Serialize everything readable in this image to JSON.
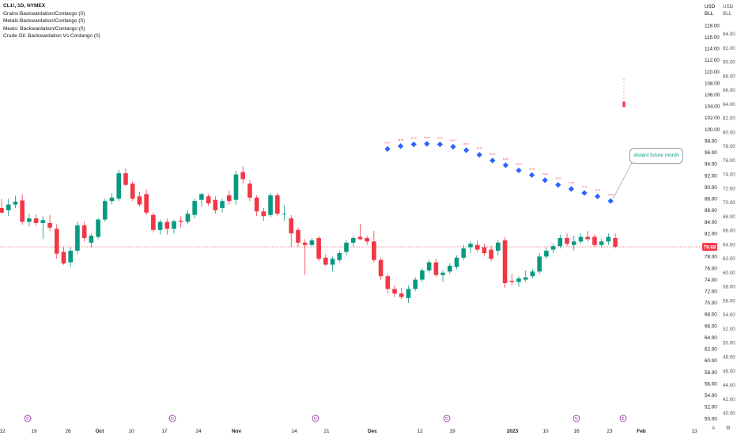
{
  "legend": {
    "symbol": "CL1!, 1D, NYMEX",
    "lines": [
      "Grains:Backwardation/Contango (0)",
      "Metals:Backwardation/Contango (0)",
      "Meats: Backwardation/Contango (0)",
      "Crude Oil: Backwardation Vs Contango (0)"
    ]
  },
  "axis_headers": {
    "right_top": [
      "USD",
      "BLL"
    ],
    "right2_top": [
      "USD",
      "BLL"
    ]
  },
  "annotation": {
    "text": "distant future month"
  },
  "price_tag": {
    "value": "79.68",
    "color": "#f23645"
  },
  "corner_buttons": [
    "A",
    "⚙"
  ],
  "colors": {
    "up": "#089981",
    "down": "#f23645",
    "curve_marker": "#2962ff",
    "curve_label": "#f23645"
  },
  "chart_data": {
    "type": "candlestick",
    "x_ticks": [
      "12",
      "19",
      "26",
      "Oct",
      "10",
      "17",
      "24",
      "Nov",
      "14",
      "21",
      "Dec",
      "12",
      "19",
      "2023",
      "10",
      "16",
      "23",
      "Feb",
      "13"
    ],
    "bold_x_ticks": [
      "Oct",
      "Nov",
      "Dec",
      "2023",
      "Feb"
    ],
    "event_markers": [
      {
        "after_tick": "26",
        "glyph": "↻"
      },
      {
        "after_tick": "10",
        "glyph": "↻"
      },
      {
        "after_tick": "Nov",
        "glyph": "↻"
      },
      {
        "after_tick": "12",
        "glyph": "↻"
      },
      {
        "after_tick": "16",
        "glyph": "↻"
      },
      {
        "after_tick": "23",
        "glyph": "E"
      }
    ],
    "y_axis_left": {
      "label": "USD",
      "range": [
        50,
        118
      ],
      "ticks": [
        "118.00",
        "116.00",
        "114.00",
        "112.00",
        "110.00",
        "108.00",
        "106.00",
        "104.00",
        "102.00",
        "100.00",
        "98.00",
        "96.00",
        "94.00",
        "92.00",
        "90.00",
        "88.00",
        "86.00",
        "84.00",
        "82.00",
        "80.00",
        "78.00",
        "76.00",
        "74.00",
        "72.00",
        "70.00",
        "68.00",
        "66.00",
        "64.00",
        "62.00",
        "60.00",
        "58.00",
        "56.00",
        "54.00",
        "52.00",
        "50.00"
      ]
    },
    "y_axis_right": {
      "label": "BLL",
      "range": [
        38,
        96
      ],
      "ticks": [
        "94.00",
        "92.00",
        "90.00",
        "88.00",
        "86.00",
        "84.00",
        "82.00",
        "80.00",
        "78.00",
        "76.00",
        "74.00",
        "72.00",
        "70.00",
        "68.00",
        "66.00",
        "64.00",
        "62.00",
        "60.00",
        "58.00",
        "56.00",
        "54.00",
        "52.00",
        "50.00",
        "48.00",
        "46.00",
        "44.00",
        "42.00",
        "40.00"
      ]
    },
    "last_price": 79.68,
    "candles": [
      {
        "o": 86.4,
        "h": 88.0,
        "l": 85.4,
        "c": 85.6
      },
      {
        "o": 86.0,
        "h": 88.0,
        "l": 85.0,
        "c": 87.0
      },
      {
        "o": 87.0,
        "h": 88.5,
        "l": 86.4,
        "c": 87.5
      },
      {
        "o": 87.7,
        "h": 88.8,
        "l": 83.5,
        "c": 84.0
      },
      {
        "o": 84.0,
        "h": 85.4,
        "l": 83.2,
        "c": 84.6
      },
      {
        "o": 84.6,
        "h": 85.3,
        "l": 83.3,
        "c": 83.8
      },
      {
        "o": 83.8,
        "h": 85.0,
        "l": 81.0,
        "c": 84.3
      },
      {
        "o": 83.8,
        "h": 85.2,
        "l": 82.4,
        "c": 83.0
      },
      {
        "o": 82.8,
        "h": 83.6,
        "l": 77.6,
        "c": 78.5
      },
      {
        "o": 78.8,
        "h": 79.6,
        "l": 76.6,
        "c": 76.8
      },
      {
        "o": 77.0,
        "h": 79.6,
        "l": 76.2,
        "c": 79.0
      },
      {
        "o": 79.0,
        "h": 84.0,
        "l": 78.4,
        "c": 83.4
      },
      {
        "o": 83.4,
        "h": 84.0,
        "l": 80.6,
        "c": 81.2
      },
      {
        "o": 80.4,
        "h": 82.0,
        "l": 79.6,
        "c": 81.6
      },
      {
        "o": 81.4,
        "h": 84.6,
        "l": 81.0,
        "c": 84.4
      },
      {
        "o": 84.4,
        "h": 88.0,
        "l": 84.0,
        "c": 87.6
      },
      {
        "o": 87.6,
        "h": 89.0,
        "l": 87.0,
        "c": 88.2
      },
      {
        "o": 88.0,
        "h": 93.0,
        "l": 87.6,
        "c": 92.4
      },
      {
        "o": 92.4,
        "h": 93.2,
        "l": 90.2,
        "c": 90.4
      },
      {
        "o": 90.6,
        "h": 91.0,
        "l": 87.6,
        "c": 88.0
      },
      {
        "o": 88.4,
        "h": 89.2,
        "l": 86.6,
        "c": 87.0
      },
      {
        "o": 88.8,
        "h": 89.6,
        "l": 85.2,
        "c": 85.6
      },
      {
        "o": 85.2,
        "h": 85.6,
        "l": 82.2,
        "c": 82.6
      },
      {
        "o": 82.6,
        "h": 84.4,
        "l": 81.8,
        "c": 84.0
      },
      {
        "o": 84.0,
        "h": 84.6,
        "l": 81.8,
        "c": 82.8
      },
      {
        "o": 82.8,
        "h": 84.4,
        "l": 82.0,
        "c": 84.1
      },
      {
        "o": 84.2,
        "h": 85.0,
        "l": 83.0,
        "c": 84.0
      },
      {
        "o": 84.0,
        "h": 86.0,
        "l": 83.6,
        "c": 85.4
      },
      {
        "o": 85.2,
        "h": 88.0,
        "l": 84.6,
        "c": 87.6
      },
      {
        "o": 87.8,
        "h": 89.0,
        "l": 86.6,
        "c": 88.8
      },
      {
        "o": 88.4,
        "h": 88.8,
        "l": 86.8,
        "c": 87.2
      },
      {
        "o": 87.8,
        "h": 88.4,
        "l": 85.4,
        "c": 86.0
      },
      {
        "o": 86.4,
        "h": 88.0,
        "l": 85.6,
        "c": 87.6
      },
      {
        "o": 88.6,
        "h": 89.4,
        "l": 87.0,
        "c": 87.6
      },
      {
        "o": 87.8,
        "h": 92.8,
        "l": 87.0,
        "c": 92.2
      },
      {
        "o": 92.6,
        "h": 93.6,
        "l": 90.6,
        "c": 91.4
      },
      {
        "o": 90.6,
        "h": 91.2,
        "l": 87.6,
        "c": 88.2
      },
      {
        "o": 88.2,
        "h": 88.6,
        "l": 85.0,
        "c": 85.8
      },
      {
        "o": 85.8,
        "h": 86.4,
        "l": 84.2,
        "c": 85.0
      },
      {
        "o": 85.2,
        "h": 89.0,
        "l": 84.8,
        "c": 88.6
      },
      {
        "o": 88.6,
        "h": 89.0,
        "l": 85.0,
        "c": 85.4
      },
      {
        "o": 85.4,
        "h": 86.8,
        "l": 84.2,
        "c": 85.4
      },
      {
        "o": 84.6,
        "h": 85.2,
        "l": 79.6,
        "c": 82.0
      },
      {
        "o": 82.6,
        "h": 83.0,
        "l": 79.6,
        "c": 80.4
      },
      {
        "o": 80.4,
        "h": 81.0,
        "l": 74.8,
        "c": 80.0
      },
      {
        "o": 80.0,
        "h": 81.2,
        "l": 79.6,
        "c": 80.8
      },
      {
        "o": 81.2,
        "h": 81.6,
        "l": 77.2,
        "c": 77.6
      },
      {
        "o": 77.8,
        "h": 78.4,
        "l": 76.4,
        "c": 76.6
      },
      {
        "o": 76.6,
        "h": 78.0,
        "l": 75.4,
        "c": 77.6
      },
      {
        "o": 77.4,
        "h": 79.0,
        "l": 77.0,
        "c": 78.6
      },
      {
        "o": 78.8,
        "h": 80.8,
        "l": 78.2,
        "c": 80.4
      },
      {
        "o": 80.4,
        "h": 81.6,
        "l": 79.6,
        "c": 81.2
      },
      {
        "o": 81.4,
        "h": 83.6,
        "l": 80.8,
        "c": 81.0
      },
      {
        "o": 81.2,
        "h": 81.6,
        "l": 80.0,
        "c": 80.6
      },
      {
        "o": 80.6,
        "h": 82.4,
        "l": 77.0,
        "c": 77.4
      },
      {
        "o": 77.4,
        "h": 77.8,
        "l": 74.0,
        "c": 74.6
      },
      {
        "o": 74.6,
        "h": 75.0,
        "l": 71.6,
        "c": 72.4
      },
      {
        "o": 72.4,
        "h": 73.0,
        "l": 71.0,
        "c": 71.6
      },
      {
        "o": 71.6,
        "h": 72.6,
        "l": 70.6,
        "c": 71.0
      },
      {
        "o": 70.8,
        "h": 73.0,
        "l": 70.0,
        "c": 72.4
      },
      {
        "o": 72.4,
        "h": 74.4,
        "l": 72.0,
        "c": 74.0
      },
      {
        "o": 74.0,
        "h": 76.0,
        "l": 73.6,
        "c": 75.6
      },
      {
        "o": 75.6,
        "h": 77.4,
        "l": 75.2,
        "c": 77.0
      },
      {
        "o": 77.0,
        "h": 77.6,
        "l": 74.4,
        "c": 74.8
      },
      {
        "o": 74.8,
        "h": 75.6,
        "l": 73.6,
        "c": 75.2
      },
      {
        "o": 75.4,
        "h": 76.8,
        "l": 75.0,
        "c": 76.4
      },
      {
        "o": 76.2,
        "h": 78.2,
        "l": 75.8,
        "c": 77.8
      },
      {
        "o": 77.8,
        "h": 80.0,
        "l": 77.4,
        "c": 79.4
      },
      {
        "o": 79.6,
        "h": 80.6,
        "l": 78.6,
        "c": 80.2
      },
      {
        "o": 80.0,
        "h": 80.8,
        "l": 78.8,
        "c": 79.2
      },
      {
        "o": 79.6,
        "h": 80.2,
        "l": 78.2,
        "c": 78.6
      },
      {
        "o": 79.2,
        "h": 79.8,
        "l": 77.2,
        "c": 77.6
      },
      {
        "o": 79.0,
        "h": 80.8,
        "l": 78.2,
        "c": 80.4
      },
      {
        "o": 80.8,
        "h": 81.4,
        "l": 72.6,
        "c": 73.4
      },
      {
        "o": 73.8,
        "h": 75.0,
        "l": 73.0,
        "c": 73.6
      },
      {
        "o": 73.6,
        "h": 74.6,
        "l": 72.8,
        "c": 74.2
      },
      {
        "o": 74.0,
        "h": 75.6,
        "l": 73.6,
        "c": 74.4
      },
      {
        "o": 74.6,
        "h": 75.8,
        "l": 74.2,
        "c": 75.4
      },
      {
        "o": 75.4,
        "h": 78.6,
        "l": 75.0,
        "c": 78.0
      },
      {
        "o": 78.0,
        "h": 79.6,
        "l": 77.6,
        "c": 79.0
      },
      {
        "o": 79.2,
        "h": 80.2,
        "l": 78.6,
        "c": 79.8
      },
      {
        "o": 79.8,
        "h": 81.8,
        "l": 79.4,
        "c": 81.2
      },
      {
        "o": 81.2,
        "h": 82.0,
        "l": 79.8,
        "c": 80.2
      },
      {
        "o": 80.0,
        "h": 81.6,
        "l": 79.0,
        "c": 80.6
      },
      {
        "o": 80.6,
        "h": 82.0,
        "l": 80.2,
        "c": 81.4
      },
      {
        "o": 81.4,
        "h": 82.4,
        "l": 80.6,
        "c": 81.0
      },
      {
        "o": 81.4,
        "h": 81.8,
        "l": 79.6,
        "c": 80.0
      },
      {
        "o": 80.0,
        "h": 81.0,
        "l": 79.6,
        "c": 80.6
      },
      {
        "o": 80.6,
        "h": 82.0,
        "l": 80.0,
        "c": 81.4
      },
      {
        "o": 81.2,
        "h": 82.0,
        "l": 79.4,
        "c": 79.7
      }
    ],
    "forward_curve": {
      "values": [
        96.6,
        97.1,
        97.4,
        97.5,
        97.4,
        97.0,
        96.4,
        95.6,
        94.6,
        93.8,
        92.9,
        92.1,
        91.2,
        90.4,
        89.7,
        89.0,
        88.4,
        87.6
      ],
      "labels": [
        "84.57",
        "84.95",
        "85.10",
        "85.09",
        "84.94",
        "84.57",
        "83.97",
        "83.22",
        "82.40",
        "81.63",
        "80.84",
        "80.06",
        "79.29",
        "78.52",
        "77.80",
        "77.11",
        "76.43",
        "75.68"
      ]
    },
    "next_contract": {
      "value": 104.4,
      "dash_to": 108.7
    }
  }
}
